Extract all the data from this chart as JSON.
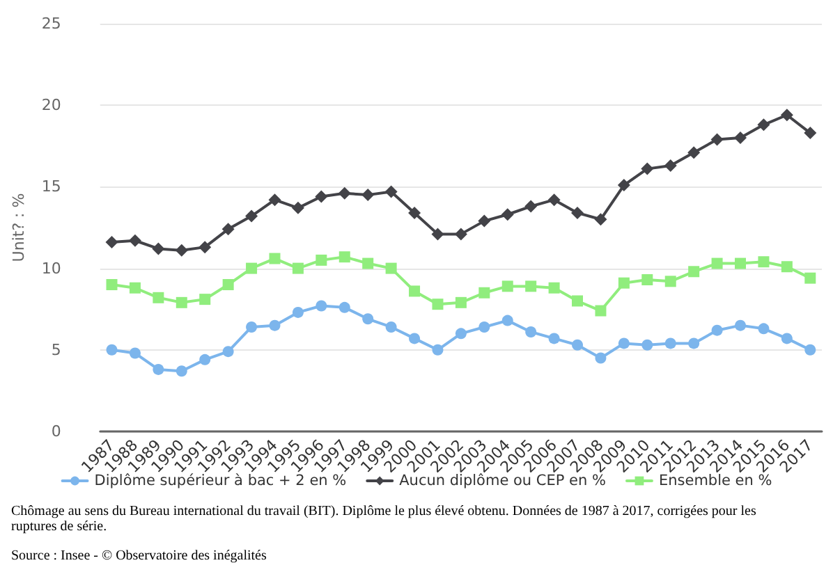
{
  "chart_data": {
    "type": "line",
    "ylabel": "Unit? : %",
    "categories": [
      "1987",
      "1988",
      "1989",
      "1990",
      "1991",
      "1992",
      "1993",
      "1994",
      "1995",
      "1996",
      "1997",
      "1998",
      "1999",
      "2000",
      "2001",
      "2002",
      "2003",
      "2004",
      "2005",
      "2006",
      "2007",
      "2008",
      "2009",
      "2010",
      "2011",
      "2012",
      "2013",
      "2014",
      "2015",
      "2016",
      "2017"
    ],
    "series": [
      {
        "name": "Diplôme supérieur à bac + 2 en %",
        "color": "#7cb5ec",
        "marker": "circle",
        "values": [
          5.0,
          4.8,
          3.8,
          3.7,
          4.4,
          4.9,
          6.4,
          6.5,
          7.3,
          7.7,
          7.6,
          6.9,
          6.4,
          5.7,
          5.0,
          6.0,
          6.4,
          6.8,
          6.1,
          5.7,
          5.3,
          4.5,
          5.4,
          5.3,
          5.4,
          5.4,
          6.2,
          6.5,
          6.3,
          5.7,
          5.0
        ]
      },
      {
        "name": "Aucun diplôme ou CEP en %",
        "color": "#434348",
        "marker": "diamond",
        "values": [
          11.6,
          11.7,
          11.2,
          11.1,
          11.3,
          12.4,
          13.2,
          14.2,
          13.7,
          14.4,
          14.6,
          14.5,
          14.7,
          13.4,
          12.1,
          12.1,
          12.9,
          13.3,
          13.8,
          14.2,
          13.4,
          13.0,
          15.1,
          16.1,
          16.3,
          17.1,
          17.9,
          18.0,
          18.8,
          19.4,
          18.3
        ]
      },
      {
        "name": "Ensemble en %",
        "color": "#90ed7d",
        "marker": "square",
        "values": [
          9.0,
          8.8,
          8.2,
          7.9,
          8.1,
          9.0,
          10.0,
          10.6,
          10.0,
          10.5,
          10.7,
          10.3,
          10.0,
          8.6,
          7.8,
          7.9,
          8.5,
          8.9,
          8.9,
          8.8,
          8.0,
          7.4,
          9.1,
          9.3,
          9.2,
          9.8,
          10.3,
          10.3,
          10.4,
          10.1,
          9.4
        ]
      }
    ],
    "ylim": [
      0,
      25
    ],
    "yticks": [
      0,
      5,
      10,
      15,
      20,
      25
    ],
    "grid": "y",
    "legend": "bottom",
    "line_style": "solid",
    "annotations": [
      "Chômage au sens du Bureau international du travail (BIT). Diplôme le plus élevé obtenu. Données de 1987 à 2017, corrigées pour les ruptures de série.",
      "Source : Insee - © Observatoire des inégalités"
    ]
  }
}
